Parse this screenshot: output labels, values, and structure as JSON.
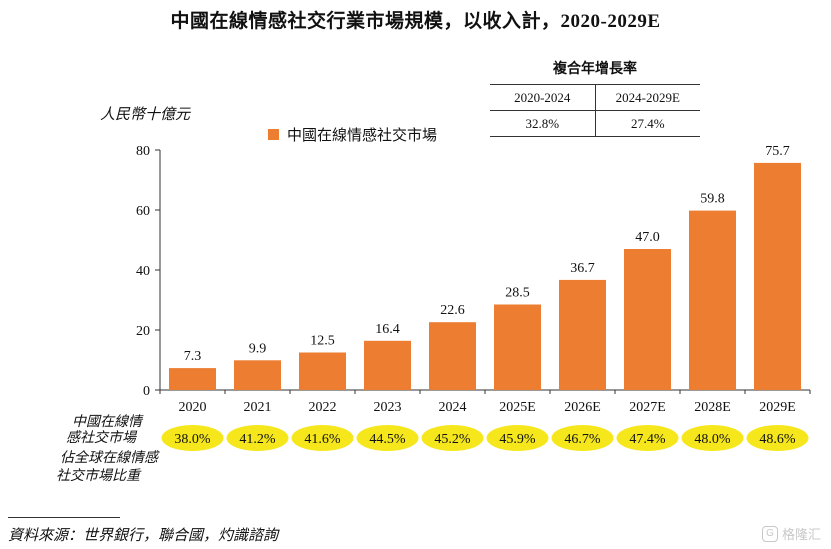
{
  "chart_data": {
    "type": "bar",
    "title": "中國在線情感社交行業市場規模，以收入計，2020-2029E",
    "ylabel": "人民幣十億元",
    "ylim": [
      0,
      80
    ],
    "yticks": [
      "0",
      "20",
      "40",
      "60",
      "80"
    ],
    "ytick_values": [
      0,
      20,
      40,
      60,
      80
    ],
    "categories": [
      "2020",
      "2021",
      "2022",
      "2023",
      "2024",
      "2025E",
      "2026E",
      "2027E",
      "2028E",
      "2029E"
    ],
    "series": [
      {
        "name": "中國在線情感社交市場",
        "values": [
          7.3,
          9.9,
          12.5,
          16.4,
          22.6,
          28.5,
          36.7,
          47.0,
          59.8,
          75.7
        ]
      }
    ],
    "value_labels": [
      "7.3",
      "9.9",
      "12.5",
      "16.4",
      "22.6",
      "28.5",
      "36.7",
      "47.0",
      "59.8",
      "75.7"
    ],
    "share_label_lines": [
      "中國在線情",
      "感社交市場",
      "佔全球在線情感",
      "社交市場比重"
    ],
    "share_values": [
      "38.0%",
      "41.2%",
      "41.6%",
      "44.5%",
      "45.2%",
      "45.9%",
      "46.7%",
      "47.4%",
      "48.0%",
      "48.6%"
    ],
    "cagr": {
      "title": "複合年增長率",
      "periods": [
        "2020-2024",
        "2024-2029E"
      ],
      "rates": [
        "32.8%",
        "27.4%"
      ]
    },
    "legend_position": "top-center"
  },
  "colors": {
    "bar": "#ED7D31",
    "share_ellipse": "#F5E71C",
    "axis": "#333333"
  },
  "source": "資料來源：世界銀行，聯合國，灼識諮詢",
  "watermark": "格隆汇",
  "watermark_icon": "G"
}
